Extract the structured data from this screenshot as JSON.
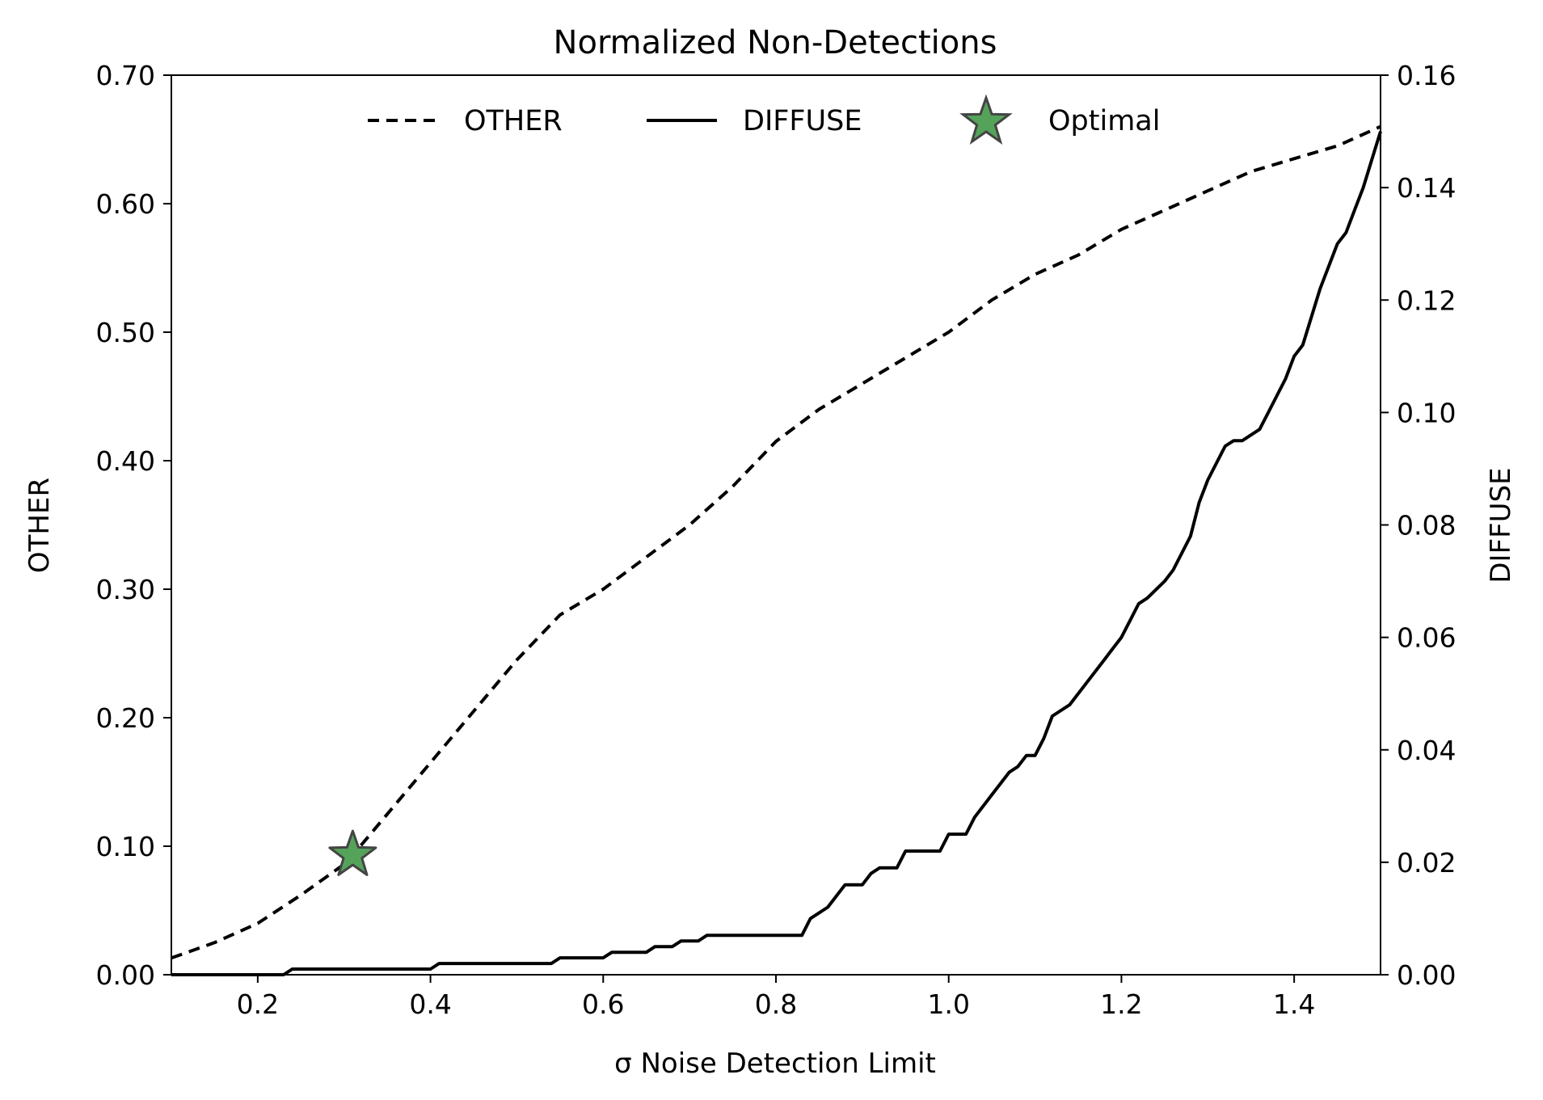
{
  "chart_data": {
    "type": "line",
    "title": "Normalized Non-Detections",
    "xlabel": "σ Noise Detection Limit",
    "ylabel_left": "OTHER",
    "ylabel_right": "DIFFUSE",
    "xlim": [
      0.1,
      1.5
    ],
    "ylim_left": [
      0.0,
      0.7
    ],
    "ylim_right": [
      0.0,
      0.16
    ],
    "grid": false,
    "legend_position": "top-center",
    "x_ticks": [
      0.2,
      0.4,
      0.6,
      0.8,
      1.0,
      1.2,
      1.4
    ],
    "x_tick_labels": [
      "0.2",
      "0.4",
      "0.6",
      "0.8",
      "1.0",
      "1.2",
      "1.4"
    ],
    "y_left_ticks": [
      0.0,
      0.1,
      0.2,
      0.3,
      0.4,
      0.5,
      0.6,
      0.7
    ],
    "y_left_tick_labels": [
      "0.00",
      "0.10",
      "0.20",
      "0.30",
      "0.40",
      "0.50",
      "0.60",
      "0.70"
    ],
    "y_right_ticks": [
      0.0,
      0.02,
      0.04,
      0.06,
      0.08,
      0.1,
      0.12,
      0.14,
      0.16
    ],
    "y_right_tick_labels": [
      "0.00",
      "0.02",
      "0.04",
      "0.06",
      "0.08",
      "0.10",
      "0.12",
      "0.14",
      "0.16"
    ],
    "series": [
      {
        "name": "OTHER",
        "axis": "left",
        "style": "dashed",
        "color": "#000000",
        "x": [
          0.1,
          0.15,
          0.2,
          0.25,
          0.3,
          0.31,
          0.35,
          0.4,
          0.45,
          0.5,
          0.55,
          0.6,
          0.65,
          0.7,
          0.75,
          0.8,
          0.85,
          0.9,
          0.95,
          1.0,
          1.05,
          1.1,
          1.15,
          1.2,
          1.25,
          1.3,
          1.35,
          1.4,
          1.45,
          1.5
        ],
        "y": [
          0.013,
          0.025,
          0.04,
          0.062,
          0.086,
          0.093,
          0.125,
          0.165,
          0.205,
          0.245,
          0.28,
          0.3,
          0.325,
          0.35,
          0.38,
          0.415,
          0.44,
          0.46,
          0.48,
          0.5,
          0.525,
          0.545,
          0.56,
          0.58,
          0.595,
          0.61,
          0.625,
          0.635,
          0.645,
          0.66
        ]
      },
      {
        "name": "DIFFUSE",
        "axis": "right",
        "style": "solid",
        "color": "#000000",
        "x": [
          0.1,
          0.23,
          0.24,
          0.4,
          0.41,
          0.54,
          0.55,
          0.6,
          0.61,
          0.65,
          0.66,
          0.68,
          0.69,
          0.71,
          0.72,
          0.83,
          0.84,
          0.86,
          0.88,
          0.9,
          0.91,
          0.92,
          0.94,
          0.95,
          0.99,
          1.0,
          1.02,
          1.03,
          1.05,
          1.07,
          1.08,
          1.09,
          1.1,
          1.11,
          1.12,
          1.14,
          1.16,
          1.18,
          1.19,
          1.2,
          1.21,
          1.22,
          1.23,
          1.25,
          1.26,
          1.28,
          1.29,
          1.3,
          1.31,
          1.32,
          1.33,
          1.34,
          1.36,
          1.37,
          1.38,
          1.39,
          1.4,
          1.41,
          1.42,
          1.43,
          1.44,
          1.45,
          1.46,
          1.47,
          1.48,
          1.49,
          1.5
        ],
        "y": [
          0.0,
          0.0,
          0.001,
          0.001,
          0.002,
          0.002,
          0.003,
          0.003,
          0.004,
          0.004,
          0.005,
          0.005,
          0.006,
          0.006,
          0.007,
          0.007,
          0.01,
          0.012,
          0.016,
          0.016,
          0.018,
          0.019,
          0.019,
          0.022,
          0.022,
          0.025,
          0.025,
          0.028,
          0.032,
          0.036,
          0.037,
          0.039,
          0.039,
          0.042,
          0.046,
          0.048,
          0.052,
          0.056,
          0.058,
          0.06,
          0.063,
          0.066,
          0.067,
          0.07,
          0.072,
          0.078,
          0.084,
          0.088,
          0.091,
          0.094,
          0.095,
          0.095,
          0.097,
          0.1,
          0.103,
          0.106,
          0.11,
          0.112,
          0.117,
          0.122,
          0.126,
          0.13,
          0.132,
          0.136,
          0.14,
          0.145,
          0.15
        ]
      }
    ],
    "markers": [
      {
        "name": "Optimal",
        "axis": "left",
        "shape": "star",
        "color": "#55a35a",
        "edge_color": "#444444",
        "x": 0.31,
        "y": 0.093
      }
    ],
    "legend": [
      {
        "label": "OTHER",
        "style": "dashed"
      },
      {
        "label": "DIFFUSE",
        "style": "solid"
      },
      {
        "label": "Optimal",
        "style": "star"
      }
    ]
  }
}
